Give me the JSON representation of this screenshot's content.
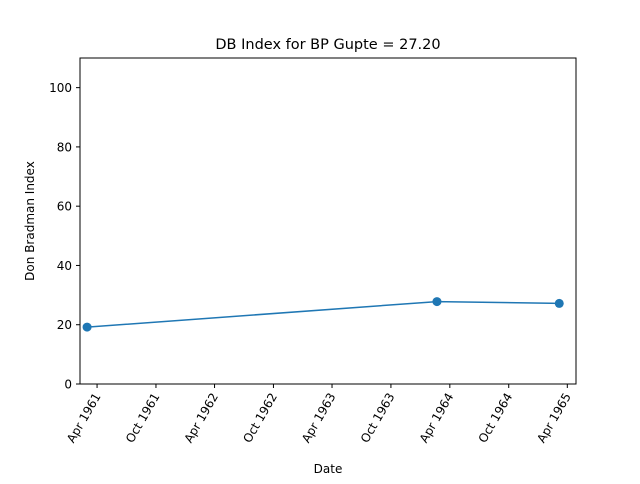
{
  "chart_data": {
    "type": "line",
    "title": "DB Index for BP Gupte = 27.20",
    "xlabel": "Date",
    "ylabel": "Don Bradman Index",
    "ylim": [
      0,
      110
    ],
    "yticks": [
      0,
      20,
      40,
      60,
      80,
      100
    ],
    "xlim": [
      "1961-02-07",
      "1965-04-28"
    ],
    "xticks": [
      {
        "date": "1961-04-01",
        "label": "Apr 1961"
      },
      {
        "date": "1961-10-01",
        "label": "Oct 1961"
      },
      {
        "date": "1962-04-01",
        "label": "Apr 1962"
      },
      {
        "date": "1962-10-01",
        "label": "Oct 1962"
      },
      {
        "date": "1963-04-01",
        "label": "Apr 1963"
      },
      {
        "date": "1963-10-01",
        "label": "Oct 1963"
      },
      {
        "date": "1964-04-01",
        "label": "Apr 1964"
      },
      {
        "date": "1964-10-01",
        "label": "Oct 1964"
      },
      {
        "date": "1965-04-01",
        "label": "Apr 1965"
      }
    ],
    "grid": false,
    "series": [
      {
        "color": "#1f77b4",
        "marker": "circle",
        "points": [
          {
            "x": "1961-03-01",
            "y": 19.2
          },
          {
            "x": "1964-02-21",
            "y": 27.8
          },
          {
            "x": "1965-03-07",
            "y": 27.2
          }
        ]
      }
    ]
  }
}
